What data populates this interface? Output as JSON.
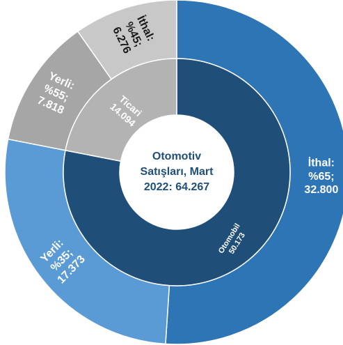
{
  "chart_data": {
    "type": "sunburst",
    "center_label": [
      "Otomotiv",
      "Satışları, Mart",
      "2022: 64.267"
    ],
    "total": 64267,
    "inner_ring": [
      {
        "name": "Otomobil",
        "value": 50173,
        "label": [
          "Otomobil",
          "50.173"
        ],
        "color": "#1f4e79"
      },
      {
        "name": "Ticari",
        "value": 14094,
        "label": [
          "Ticari",
          "14.094"
        ],
        "color": "#b3b3b3"
      }
    ],
    "outer_ring": [
      {
        "parent": "Otomobil",
        "name": "İthal",
        "share": "%65",
        "value": 32800,
        "label": [
          "İthal:",
          "%65;",
          "32.800"
        ],
        "color": "#2e75b6"
      },
      {
        "parent": "Otomobil",
        "name": "Yerli",
        "share": "%35",
        "value": 17373,
        "label": [
          "Yerli:",
          "%35;",
          "17.373"
        ],
        "color": "#5b9bd5"
      },
      {
        "parent": "Ticari",
        "name": "Yerli",
        "share": "%55",
        "value": 7818,
        "label": [
          "Yerli:",
          "%55;",
          "7.818"
        ],
        "color": "#a6a6a6"
      },
      {
        "parent": "Ticari",
        "name": "İthal",
        "share": "%45",
        "value": 6276,
        "label": [
          "İthal:",
          "%45;",
          "6.276"
        ],
        "color": "#c8c8c8"
      }
    ],
    "colors": {
      "center_text": "#1f4e79",
      "label_text": "#ffffff",
      "dark_label_text": "#1a1a1a",
      "separator": "#ffffff"
    }
  }
}
